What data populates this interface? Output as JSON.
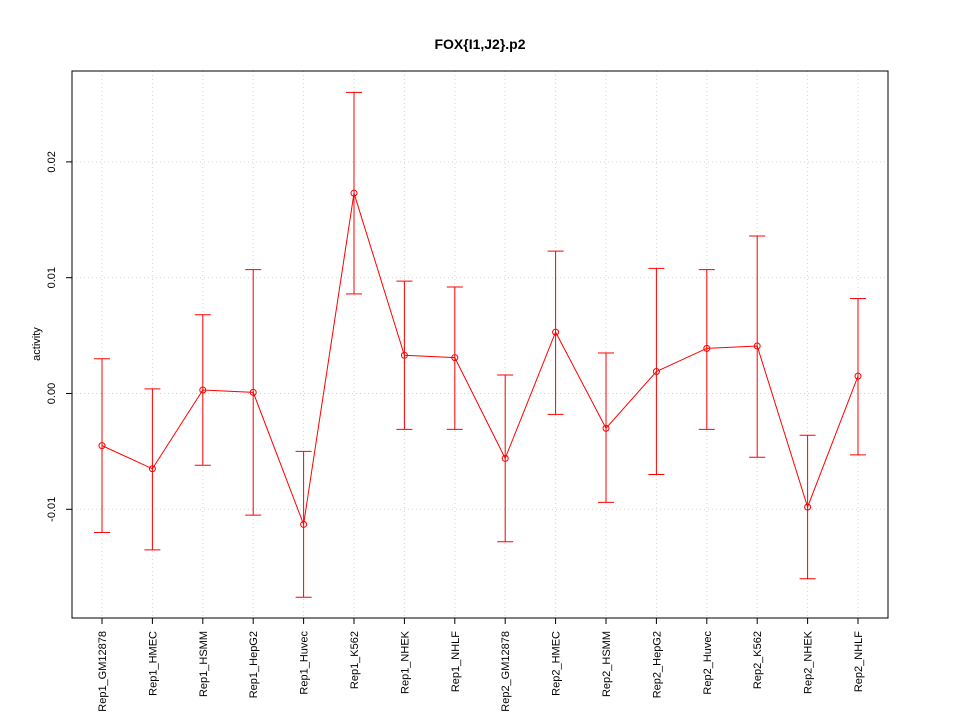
{
  "chart_data": {
    "type": "line",
    "title": "FOX{I1,J2}.p2",
    "xlabel": "",
    "ylabel": "activity",
    "ylim": [
      -0.0195,
      0.0278
    ],
    "yticks": [
      -0.01,
      0.0,
      0.01,
      0.02
    ],
    "ytick_labels": [
      "-0.01",
      "0.00",
      "0.01",
      "0.02"
    ],
    "grid": true,
    "color": "#ff0000",
    "categories": [
      "Rep1_GM12878",
      "Rep1_HMEC",
      "Rep1_HSMM",
      "Rep1_HepG2",
      "Rep1_Huvec",
      "Rep1_K562",
      "Rep1_NHEK",
      "Rep1_NHLF",
      "Rep2_GM12878",
      "Rep2_HMEC",
      "Rep2_HSMM",
      "Rep2_HepG2",
      "Rep2_Huvec",
      "Rep2_K562",
      "Rep2_NHEK",
      "Rep2_NHLF"
    ],
    "values": [
      -0.0045,
      -0.0065,
      0.0003,
      0.0001,
      -0.0113,
      0.0173,
      0.0033,
      0.0031,
      -0.0056,
      0.0053,
      -0.003,
      0.0019,
      0.0039,
      0.0041,
      -0.0098,
      0.0015
    ],
    "upper": [
      0.003,
      0.0004,
      0.0068,
      0.0107,
      -0.005,
      0.026,
      0.0097,
      0.0092,
      0.0016,
      0.0123,
      0.0035,
      0.0108,
      0.0107,
      0.0136,
      -0.0036,
      0.0082
    ],
    "lower": [
      -0.012,
      -0.0135,
      -0.0062,
      -0.0105,
      -0.0176,
      0.0086,
      -0.0031,
      -0.0031,
      -0.0128,
      -0.0018,
      -0.0094,
      -0.007,
      -0.0031,
      -0.0055,
      -0.016,
      -0.0053
    ]
  }
}
